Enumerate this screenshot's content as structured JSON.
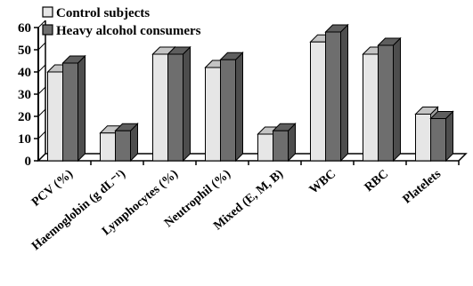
{
  "chart_data": {
    "type": "bar",
    "categories": [
      "PCV (%)",
      "Haemoglobin (g dL⁻¹)",
      "Lymphocytes (%)",
      "Neutrophil (%)",
      "Mixed (E, M, B)",
      "WBC",
      "RBC",
      "Platelets"
    ],
    "series": [
      {
        "name": "Control subjects",
        "values": [
          40,
          12.5,
          48,
          42,
          12,
          53.5,
          48,
          21
        ]
      },
      {
        "name": "Heavy alcohol consumers",
        "values": [
          44,
          13.5,
          48,
          45.5,
          13.5,
          58,
          52,
          19
        ]
      }
    ],
    "yticks": [
      0,
      10,
      20,
      30,
      40,
      50,
      60
    ],
    "ylim": [
      0,
      60
    ],
    "title": "",
    "xlabel": "",
    "ylabel": "",
    "legend_position": "top-left",
    "colors": {
      "Control subjects": "#e6e6e6",
      "Heavy alcohol consumers": "#6e6e6e"
    }
  }
}
